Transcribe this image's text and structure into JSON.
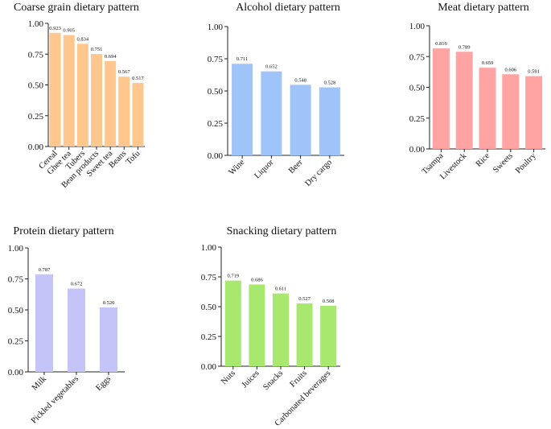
{
  "figure_title": "",
  "chart_data": [
    {
      "type": "bar",
      "title": "Coarse grain dietary pattern",
      "categories": [
        "Cereal",
        "Ghee tea",
        "Tubers",
        "Bean products",
        "Sweet tea",
        "Beans",
        "Tofu"
      ],
      "values": [
        0.923,
        0.905,
        0.834,
        0.751,
        0.694,
        0.567,
        0.517
      ],
      "value_labels": [
        "0.923",
        "0.905",
        "0.834",
        "0.751",
        "0.694",
        "0.567",
        "0.517"
      ],
      "yticks": [
        "0.00",
        "0.25",
        "0.50",
        "0.75",
        "1.00"
      ],
      "ylim": [
        0,
        1
      ],
      "xlabel": "",
      "ylabel": "",
      "color": "#FFC78E"
    },
    {
      "type": "bar",
      "title": "Alcohol dietary pattern",
      "categories": [
        "Wine",
        "Liquor",
        "Beer",
        "Dry cargo"
      ],
      "values": [
        0.711,
        0.652,
        0.548,
        0.528
      ],
      "value_labels": [
        "0.711",
        "0.652",
        "0.548",
        "0.528"
      ],
      "yticks": [
        "0.00",
        "0.25",
        "0.50",
        "0.75",
        "1.00"
      ],
      "ylim": [
        0,
        1
      ],
      "xlabel": "",
      "ylabel": "",
      "color": "#9EC4FA"
    },
    {
      "type": "bar",
      "title": "Meat dietary pattern",
      "categories": [
        "Tsampa",
        "Livestock",
        "Rice",
        "Sweets",
        "Poultry"
      ],
      "values": [
        0.816,
        0.789,
        0.659,
        0.606,
        0.591
      ],
      "value_labels": [
        "0.816",
        "0.789",
        "0.659",
        "0.606",
        "0.591"
      ],
      "yticks": [
        "0.00",
        "0.25",
        "0.50",
        "0.75",
        "1.00"
      ],
      "ylim": [
        0,
        1
      ],
      "xlabel": "",
      "ylabel": "",
      "color": "#FFA3A3"
    },
    {
      "type": "bar",
      "title": "Protein dietary pattern",
      "categories": [
        "Milk",
        "Pickled vegetables",
        "Eggs"
      ],
      "values": [
        0.787,
        0.672,
        0.52
      ],
      "value_labels": [
        "0.787",
        "0.672",
        "0.520"
      ],
      "yticks": [
        "0.00",
        "0.25",
        "0.50",
        "0.75",
        "1.00"
      ],
      "ylim": [
        0,
        1
      ],
      "xlabel": "",
      "ylabel": "",
      "color": "#C4C4F8"
    },
    {
      "type": "bar",
      "title": "Snacking dietary pattern",
      "categories": [
        "Nuts",
        "Juices",
        "Snacks",
        "Fruits",
        "Carbonated beverages"
      ],
      "values": [
        0.719,
        0.686,
        0.611,
        0.527,
        0.508
      ],
      "value_labels": [
        "0.719",
        "0.686",
        "0.611",
        "0.527",
        "0.508"
      ],
      "yticks": [
        "0.00",
        "0.25",
        "0.50",
        "0.75",
        "1.00"
      ],
      "ylim": [
        0,
        1
      ],
      "xlabel": "",
      "ylabel": "",
      "color": "#A8E86E"
    }
  ]
}
